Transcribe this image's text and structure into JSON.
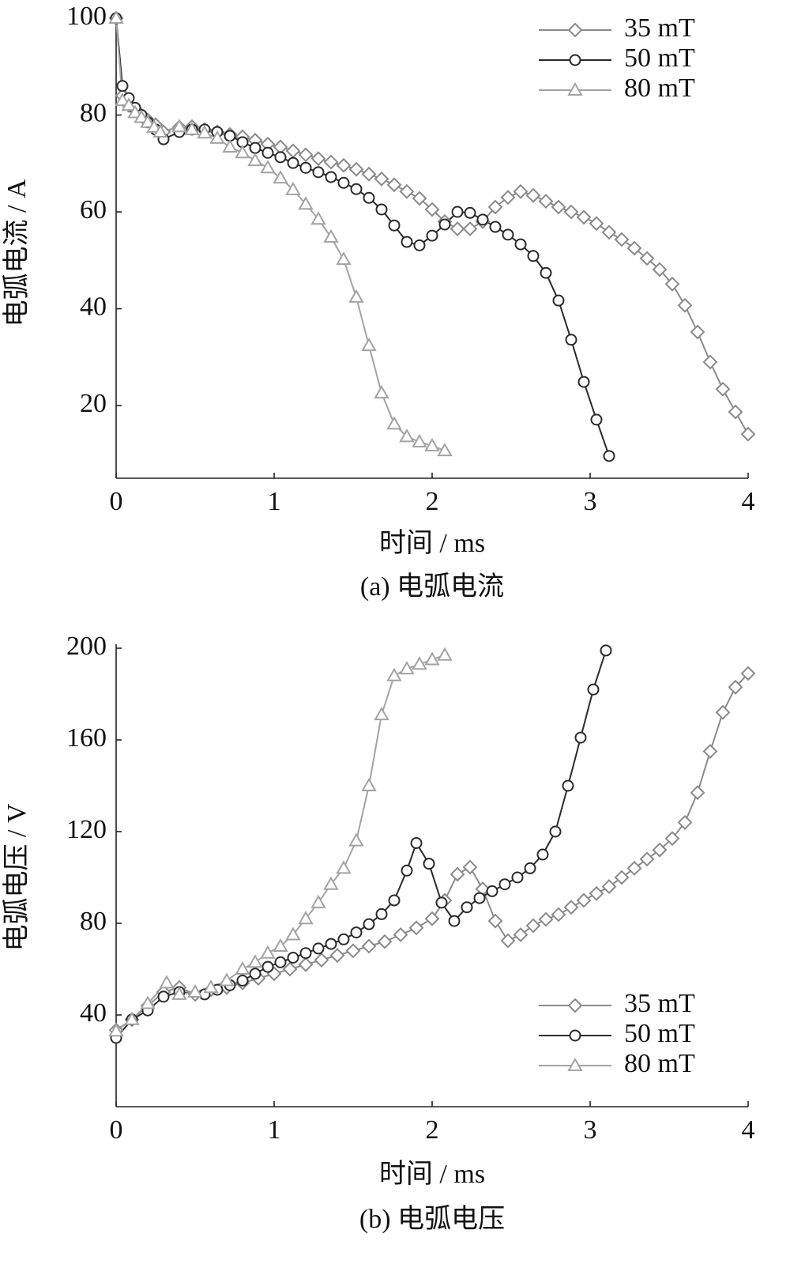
{
  "chart_data": [
    {
      "type": "line",
      "caption": "(a)  电弧电流",
      "xlabel": "时间 / ms",
      "ylabel": "电弧电流 / A",
      "xlim": [
        0,
        4
      ],
      "xticks": [
        0,
        1,
        2,
        3,
        4
      ],
      "ylim": [
        5,
        100
      ],
      "yticks": [
        20,
        40,
        60,
        80,
        100
      ],
      "legend": "upper right",
      "series": [
        {
          "name": "35 mT",
          "color": "#8a8a8a",
          "marker": "diamond",
          "x": [
            0,
            0.04,
            0.08,
            0.12,
            0.16,
            0.2,
            0.25,
            0.3,
            0.4,
            0.48,
            0.56,
            0.64,
            0.72,
            0.8,
            0.88,
            0.96,
            1.04,
            1.12,
            1.2,
            1.28,
            1.36,
            1.44,
            1.52,
            1.6,
            1.68,
            1.76,
            1.84,
            1.92,
            2.0,
            2.08,
            2.16,
            2.24,
            2.32,
            2.4,
            2.48,
            2.56,
            2.64,
            2.72,
            2.8,
            2.88,
            2.96,
            3.04,
            3.12,
            3.2,
            3.28,
            3.36,
            3.44,
            3.52,
            3.6,
            3.68,
            3.76,
            3.84,
            3.92,
            4.0
          ],
          "values": [
            100,
            84,
            82,
            81,
            80,
            79,
            78,
            76.5,
            77.5,
            77.6,
            77,
            76.5,
            76,
            75.5,
            74.8,
            74,
            73.4,
            72.6,
            71.8,
            71,
            70.3,
            69.6,
            68.8,
            67.8,
            66.8,
            65.6,
            64.2,
            62.8,
            60.5,
            58,
            56.5,
            56.5,
            58,
            61,
            63,
            64.2,
            63.4,
            62.2,
            61,
            60,
            58.9,
            57.6,
            55.8,
            54.3,
            52.5,
            50.4,
            48.1,
            45.1,
            40.7,
            35.2,
            29,
            23.4,
            18.7,
            14.1
          ]
        },
        {
          "name": "50 mT",
          "color": "#2a2a2a",
          "marker": "circle",
          "x": [
            0,
            0.04,
            0.08,
            0.12,
            0.16,
            0.2,
            0.25,
            0.3,
            0.4,
            0.48,
            0.56,
            0.64,
            0.72,
            0.8,
            0.88,
            0.96,
            1.04,
            1.12,
            1.2,
            1.28,
            1.36,
            1.44,
            1.52,
            1.6,
            1.68,
            1.76,
            1.84,
            1.92,
            2.0,
            2.08,
            2.16,
            2.24,
            2.32,
            2.4,
            2.48,
            2.56,
            2.64,
            2.72,
            2.8,
            2.88,
            2.96,
            3.04,
            3.12
          ],
          "values": [
            100,
            86,
            83.5,
            81.5,
            80,
            78.5,
            77,
            75,
            76.5,
            77,
            77,
            76.5,
            75.7,
            74.4,
            73.2,
            72.2,
            71.3,
            70.1,
            69.1,
            68.2,
            67.2,
            66,
            64.7,
            62.9,
            60.5,
            57.2,
            53.8,
            53.1,
            55.1,
            57.4,
            60,
            59.8,
            58.4,
            56.9,
            55.3,
            53.3,
            50.9,
            47.4,
            41.7,
            33.6,
            24.9,
            17.1,
            9.6
          ]
        },
        {
          "name": "80 mT",
          "color": "#a3a3a3",
          "marker": "triangle",
          "x": [
            0,
            0.04,
            0.08,
            0.12,
            0.16,
            0.2,
            0.24,
            0.28,
            0.4,
            0.48,
            0.56,
            0.64,
            0.72,
            0.8,
            0.88,
            0.96,
            1.04,
            1.12,
            1.2,
            1.28,
            1.36,
            1.44,
            1.52,
            1.6,
            1.68,
            1.76,
            1.84,
            1.92,
            2.0,
            2.08
          ],
          "values": [
            100,
            83,
            82,
            80.5,
            79.5,
            78.5,
            77.5,
            76.5,
            77.6,
            77,
            76.3,
            75.2,
            73.4,
            72.2,
            70.6,
            69.1,
            67,
            64.6,
            61.6,
            58.5,
            54.8,
            50.2,
            42.4,
            32.4,
            22.6,
            16.2,
            13.6,
            12.5,
            11.7,
            10.7
          ]
        }
      ]
    },
    {
      "type": "line",
      "caption": "(b)  电弧电压",
      "xlabel": "时间 / ms",
      "ylabel": "电弧电压 / V",
      "xlim": [
        0,
        4
      ],
      "xticks": [
        0,
        1,
        2,
        3,
        4
      ],
      "ylim": [
        0,
        200
      ],
      "yticks": [
        40,
        80,
        120,
        160,
        200
      ],
      "legend": "lower right",
      "series": [
        {
          "name": "35 mT",
          "color": "#8a8a8a",
          "marker": "diamond",
          "x": [
            0,
            0.1,
            0.2,
            0.3,
            0.4,
            0.5,
            0.6,
            0.7,
            0.8,
            0.9,
            1.0,
            1.1,
            1.2,
            1.3,
            1.4,
            1.5,
            1.6,
            1.7,
            1.8,
            1.9,
            2.0,
            2.08,
            2.16,
            2.24,
            2.32,
            2.4,
            2.48,
            2.56,
            2.64,
            2.72,
            2.8,
            2.88,
            2.96,
            3.04,
            3.12,
            3.2,
            3.28,
            3.36,
            3.44,
            3.52,
            3.6,
            3.68,
            3.76,
            3.84,
            3.92,
            4.0
          ],
          "values": [
            33.4,
            38,
            44,
            50,
            52,
            49,
            51,
            52,
            54,
            56,
            58,
            60,
            62,
            64,
            66,
            68,
            70,
            72,
            75,
            78,
            82,
            90,
            101.4,
            104.5,
            95,
            81,
            72.4,
            75,
            79,
            81.7,
            83.8,
            87,
            90,
            93,
            96,
            100,
            104,
            108,
            112,
            117,
            124,
            137,
            155,
            172,
            183,
            189
          ]
        },
        {
          "name": "50 mT",
          "color": "#2a2a2a",
          "marker": "circle",
          "x": [
            0,
            0.1,
            0.2,
            0.3,
            0.4,
            0.56,
            0.64,
            0.72,
            0.8,
            0.88,
            0.96,
            1.04,
            1.12,
            1.2,
            1.28,
            1.36,
            1.44,
            1.52,
            1.6,
            1.68,
            1.76,
            1.84,
            1.9,
            1.98,
            2.06,
            2.14,
            2.22,
            2.3,
            2.38,
            2.46,
            2.54,
            2.62,
            2.7,
            2.78,
            2.86,
            2.94,
            3.02,
            3.1
          ],
          "values": [
            30,
            38,
            42,
            48,
            50,
            49,
            51,
            53,
            55,
            58,
            61,
            63,
            65,
            67,
            69,
            71,
            73,
            76,
            79.6,
            84,
            90,
            103,
            115,
            106,
            89,
            81,
            87,
            91,
            94,
            97,
            100,
            104,
            110,
            120,
            140,
            161,
            182,
            199
          ]
        },
        {
          "name": "80 mT",
          "color": "#a3a3a3",
          "marker": "triangle",
          "x": [
            0,
            0.1,
            0.2,
            0.32,
            0.4,
            0.5,
            0.6,
            0.7,
            0.8,
            0.88,
            0.96,
            1.04,
            1.12,
            1.2,
            1.28,
            1.36,
            1.44,
            1.52,
            1.6,
            1.68,
            1.76,
            1.84,
            1.92,
            2.0,
            2.08
          ],
          "values": [
            33,
            38,
            45,
            54,
            49,
            50,
            52,
            55,
            60,
            63,
            67,
            70,
            75,
            82,
            89,
            97,
            104,
            116,
            140,
            171,
            188,
            191,
            193,
            195,
            197
          ]
        }
      ]
    }
  ]
}
